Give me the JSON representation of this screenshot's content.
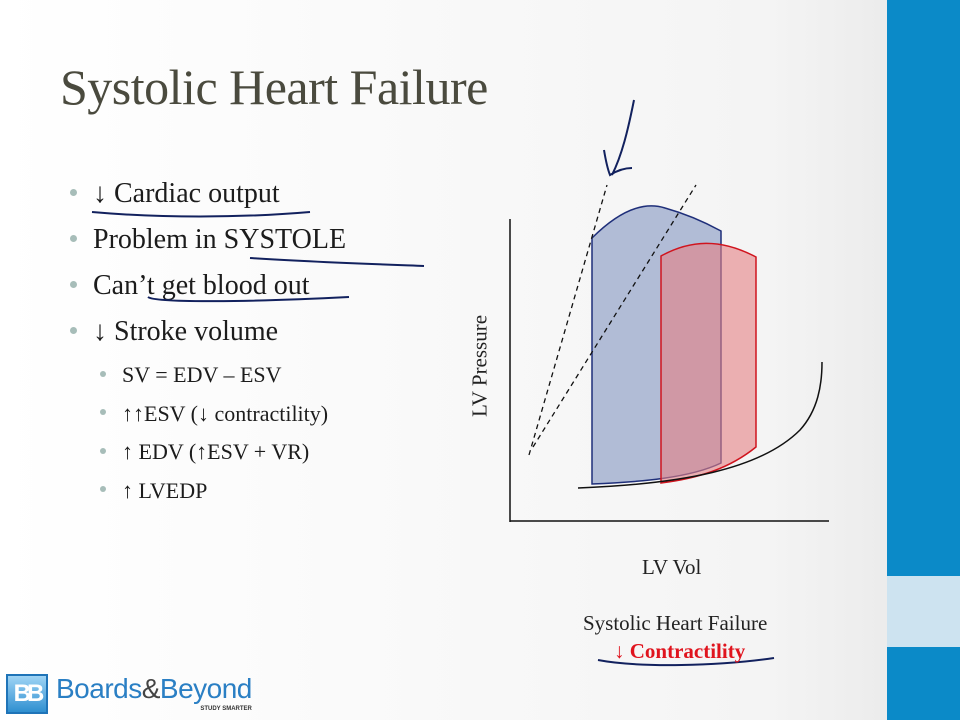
{
  "slide": {
    "title": "Systolic Heart Failure",
    "bullets": [
      {
        "text": "↓ Cardiac output"
      },
      {
        "text": "Problem in SYSTOLE"
      },
      {
        "text": "Can’t get blood out"
      },
      {
        "text": "↓ Stroke volume"
      }
    ],
    "sub_bullets": [
      {
        "text": "SV = EDV – ESV"
      },
      {
        "text": "↑↑ESV (↓ contractility)"
      },
      {
        "text": "↑ EDV (↑ESV + VR)"
      },
      {
        "text": "↑ LVEDP"
      }
    ]
  },
  "diagram": {
    "y_axis_label": "LV Pressure",
    "x_axis_label": "LV Vol",
    "caption": "Systolic Heart Failure",
    "caption_highlight": "↓ Contractility",
    "colors": {
      "normal_loop": "#1f2f7a",
      "failure_loop": "#d0141e",
      "highlight_text": "#e0141e",
      "annotation_ink": "#12215e"
    }
  },
  "logo": {
    "name_part1": "Boards",
    "amp": "&",
    "name_part2": "Beyond",
    "tagline": "STUDY SMARTER",
    "mark": "BB"
  },
  "theme": {
    "sidebar": "#0b8ac8",
    "sidebar_light": "#cde3f0"
  }
}
